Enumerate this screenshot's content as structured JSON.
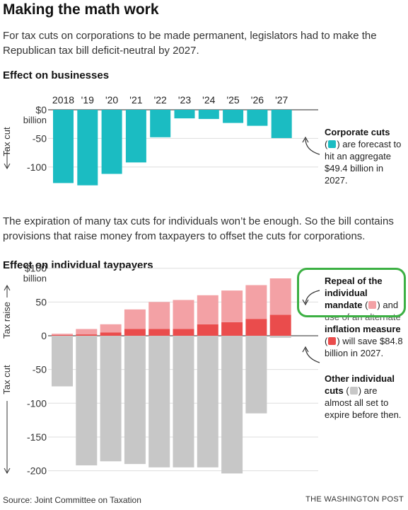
{
  "header": {
    "title": "Making the math work",
    "subtitle": "For tax cuts on corporations to be made permanent, legislators had to make the Republican tax bill deficit-neutral by 2027."
  },
  "section_business": {
    "heading": "Effect on businesses"
  },
  "middle_text": "The expiration of many tax cuts for individuals won’t be enough. So the bill contains provisions that raise money from taxpayers to offset the cuts for corporations.",
  "section_individual": {
    "heading": "Effect on individual taypayers"
  },
  "annotations": {
    "corporate": {
      "bold": "Corporate cuts",
      "pre": "(",
      "post": ") are forecast to hit an aggregate $49.4 billion in 2027."
    },
    "repeal": {
      "bold1": "Repeal of the individual mandate",
      "pre1": " (",
      "post1": ") and",
      "obscured": "use of an alternate",
      "bold2": "inflation measure",
      "pre2": "(",
      "post2": ") will save $84.8 billion in 2027."
    },
    "other": {
      "bold": "Other individual cuts",
      "pre": " (",
      "post": ") are almost all set to expire before then."
    }
  },
  "footer": {
    "source": "Source: Joint Committee on Taxation",
    "credit": "THE WASHINGTON POST"
  },
  "colors": {
    "corporate": "#1bbcc2",
    "mandate": "#f3a1a5",
    "inflation": "#ea4c4c",
    "other": "#c7c7c7",
    "highlight": "#3cb043"
  },
  "chart_data": [
    {
      "type": "bar",
      "title": "Effect on businesses",
      "categories": [
        "2018",
        "'19",
        "'20",
        "'21",
        "'22",
        "'23",
        "'24",
        "'25",
        "'26",
        "'27"
      ],
      "ylabel": "Tax cut",
      "y_tick_labels": [
        "$0",
        "-50",
        "-100"
      ],
      "y_unit_label": "billion",
      "ylim": [
        -130,
        0
      ],
      "series": [
        {
          "name": "Corporate cuts",
          "values": [
            -128,
            -132,
            -112,
            -92,
            -48,
            -15,
            -16,
            -23,
            -28,
            -49.4
          ]
        }
      ]
    },
    {
      "type": "bar",
      "title": "Effect on individual taypayers",
      "categories": [
        "2018",
        "'19",
        "'20",
        "'21",
        "'22",
        "'23",
        "'24",
        "'25",
        "'26",
        "'27"
      ],
      "ylabel": "Tax raise / Tax cut",
      "y_tick_labels": [
        "$100",
        "50",
        "0",
        "-50",
        "-100",
        "-150",
        "-200"
      ],
      "y_unit_label": "billion",
      "ylim": [
        -205,
        110
      ],
      "series": [
        {
          "name": "Alternate inflation measure",
          "values": [
            1,
            2,
            5,
            10,
            10,
            10,
            17,
            20,
            25,
            31
          ]
        },
        {
          "name": "Repeal of the individual mandate",
          "values": [
            2,
            8,
            12,
            29,
            40,
            43,
            43,
            47,
            50,
            54
          ]
        },
        {
          "name": "Other individual cuts",
          "values": [
            -75,
            -192,
            -186,
            -190,
            -195,
            -195,
            -195,
            -204,
            -115,
            -3
          ]
        }
      ]
    }
  ]
}
